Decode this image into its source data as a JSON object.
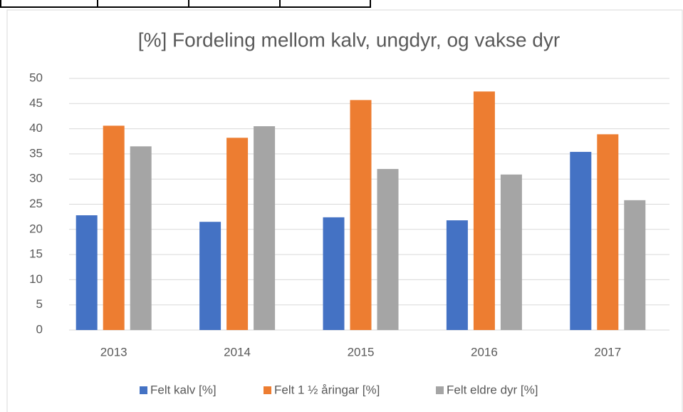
{
  "chart_data": {
    "type": "bar",
    "title": "[%] Fordeling mellom kalv, ungdyr, og vakse dyr",
    "categories": [
      "2013",
      "2014",
      "2015",
      "2016",
      "2017"
    ],
    "series": [
      {
        "name": "Felt kalv [%]",
        "color": "#4472c4",
        "values": [
          22.8,
          21.5,
          22.4,
          21.8,
          35.4
        ]
      },
      {
        "name": "Felt 1 ½ åringar [%]",
        "color": "#ed7d31",
        "values": [
          40.6,
          38.2,
          45.7,
          47.4,
          38.9
        ]
      },
      {
        "name": "Felt eldre dyr [%]",
        "color": "#a5a5a5",
        "values": [
          36.5,
          40.5,
          32.0,
          30.9,
          25.8
        ]
      }
    ],
    "ylim": [
      0,
      50
    ],
    "yticks": [
      0,
      5,
      10,
      15,
      20,
      25,
      30,
      35,
      40,
      45,
      50
    ],
    "grid": true,
    "legend": "bottom"
  }
}
